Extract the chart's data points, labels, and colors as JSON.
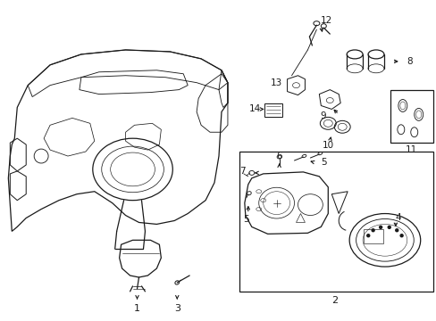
{
  "bg_color": "#ffffff",
  "line_color": "#1a1a1a",
  "fig_width": 4.89,
  "fig_height": 3.6,
  "dpi": 100,
  "gray_fill": "#e8e8e8"
}
